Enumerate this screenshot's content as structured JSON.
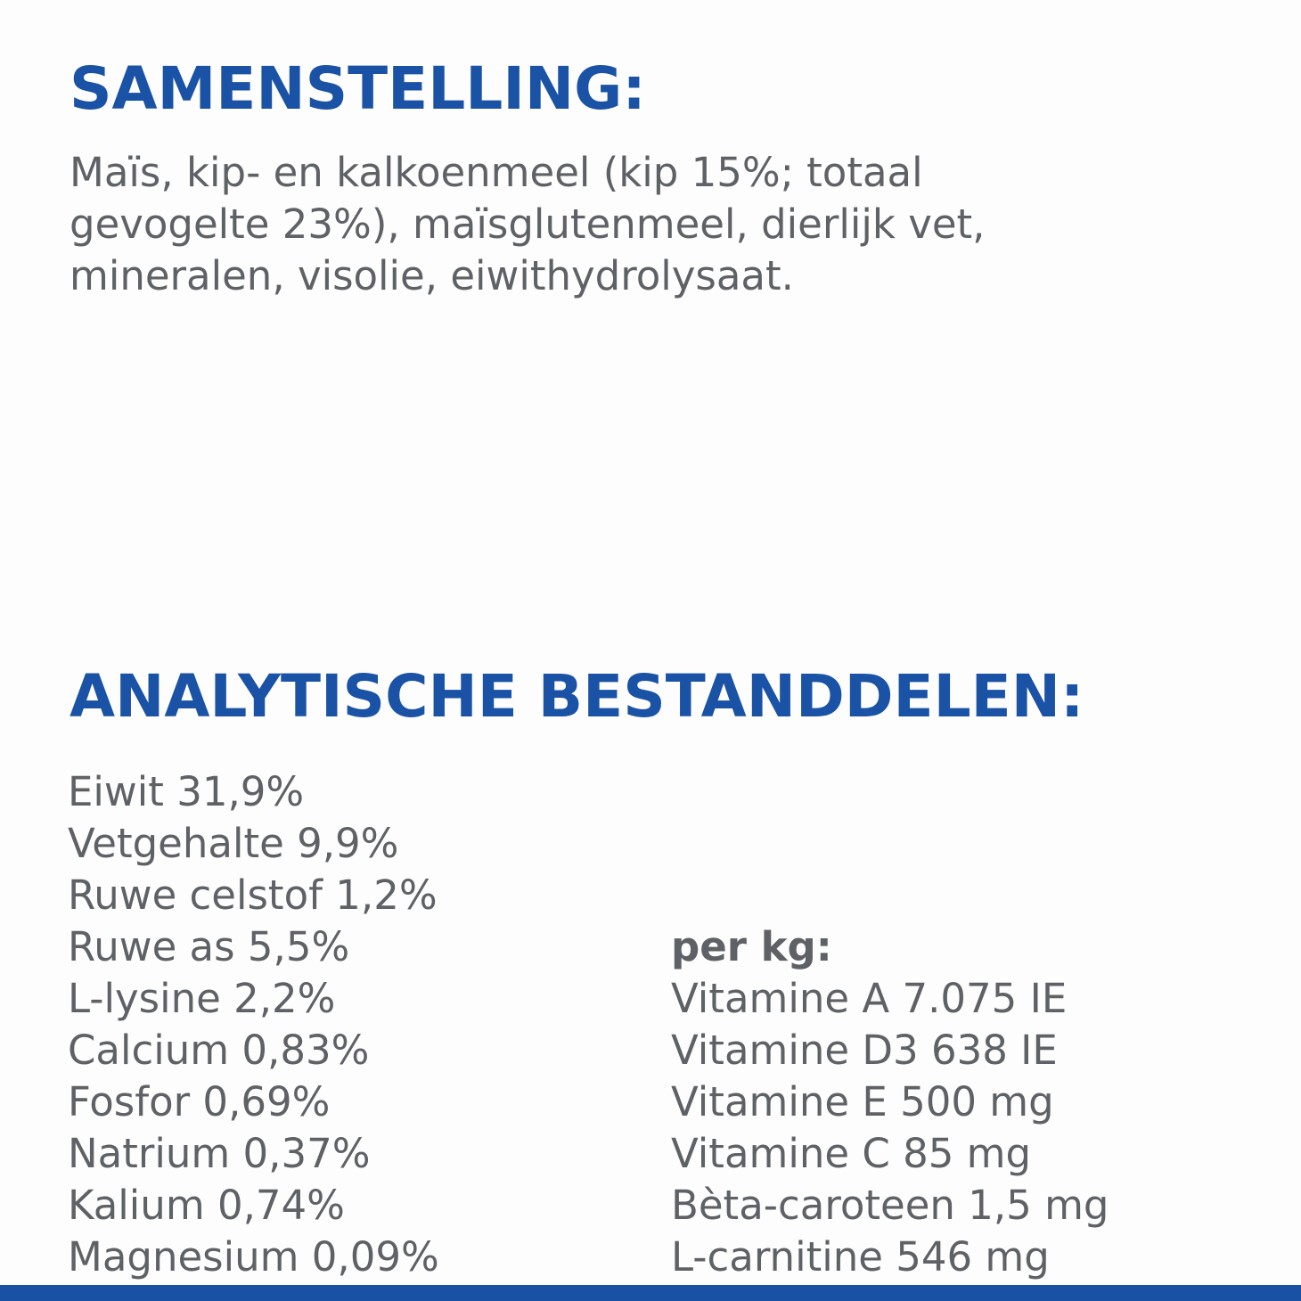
{
  "page": {
    "background_color": "#fdfdfd",
    "heading_color": "#1a52a5",
    "body_text_color": "#5e6165",
    "bottom_bar_color": "#1952a5"
  },
  "composition": {
    "heading": "SAMENSTELLING:",
    "text": "Maïs, kip- en kalkoenmeel (kip 15%; totaal gevogelte 23%), maïsglutenmeel, dierlijk vet, mineralen, visolie, eiwithydrolysaat.",
    "lines": [
      "Maïs, kip- en kalkoenmeel (kip 15%; totaal",
      "gevogelte 23%), maïsglutenmeel, dierlijk vet,",
      "mineralen, visolie, eiwithydrolysaat."
    ]
  },
  "analysis": {
    "heading": "ANALYTISCHE BESTANDDELEN:",
    "left_column": [
      "Eiwit 31,9%",
      "Vetgehalte 9,9%",
      "Ruwe celstof 1,2%",
      "Ruwe as 5,5%",
      "L-lysine 2,2%",
      "Calcium 0,83%",
      "Fosfor 0,69%",
      "Natrium 0,37%",
      "Kalium 0,74%",
      "Magnesium 0,09%"
    ],
    "right_column": {
      "heading": "per kg:",
      "items": [
        "Vitamine A 7.075 IE",
        "Vitamine D3 638 IE",
        "Vitamine E 500 mg",
        "Vitamine C 85 mg",
        "Bèta-caroteen 1,5 mg",
        "L-carnitine 546 mg"
      ]
    }
  }
}
